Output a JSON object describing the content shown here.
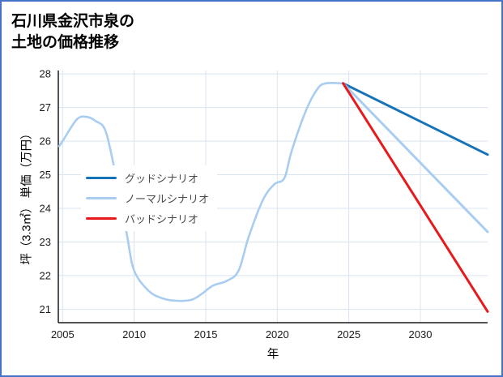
{
  "frame": {
    "border_color": "#4472c4",
    "background": "#ffffff"
  },
  "chart_data": {
    "type": "line",
    "title_line1": "石川県金沢市泉の",
    "title_line2": "土地の価格推移",
    "xlabel": "年",
    "ylabel": "坪（3.3㎡） 単価（万円）",
    "xlim": [
      2004.7,
      2034.7
    ],
    "ylim": [
      20.6,
      28.1
    ],
    "xticks": [
      2005,
      2010,
      2015,
      2020,
      2025,
      2030
    ],
    "yticks": [
      21,
      22,
      23,
      24,
      25,
      26,
      27,
      28
    ],
    "grid": true,
    "grid_color": "#d9e4f1",
    "axis_color": "#1a1a1a",
    "tick_label_color": "#1a1a1a",
    "legend_position": "inside-left",
    "legend": [
      {
        "label": "グッドシナリオ",
        "color": "#1573b9"
      },
      {
        "label": "ノーマルシナリオ",
        "color": "#a9cdf0"
      },
      {
        "label": "バッドシナリオ",
        "color": "#e8191c"
      }
    ],
    "series": [
      {
        "name": "price-history",
        "color": "#a9cdf0",
        "width": 2.6,
        "smooth": true,
        "x": [
          2004.75,
          2005,
          2006,
          2006.7,
          2007.3,
          2008,
          2008.7,
          2009.5,
          2010,
          2011,
          2012,
          2013,
          2014,
          2014.7,
          2015.5,
          2016.5,
          2017.3,
          2018,
          2019,
          2019.8,
          2020.5,
          2021,
          2022,
          2022.8,
          2023.4,
          2024.6
        ],
        "y": [
          25.85,
          26.0,
          26.65,
          26.72,
          26.6,
          26.3,
          25.0,
          23.2,
          22.15,
          21.55,
          21.32,
          21.25,
          21.28,
          21.45,
          21.7,
          21.85,
          22.15,
          23.15,
          24.25,
          24.72,
          24.9,
          25.7,
          26.9,
          27.55,
          27.72,
          27.72
        ],
        "unit": "万円/坪"
      },
      {
        "name": "グッドシナリオ",
        "color": "#1573b9",
        "width": 3,
        "smooth": false,
        "x": [
          2024.6,
          2034.7
        ],
        "y": [
          27.72,
          25.6
        ],
        "unit": "万円/坪"
      },
      {
        "name": "ノーマルシナリオ",
        "color": "#a9cdf0",
        "width": 3,
        "smooth": false,
        "x": [
          2024.6,
          2034.7
        ],
        "y": [
          27.72,
          23.3
        ],
        "unit": "万円/坪"
      },
      {
        "name": "バッドシナリオ",
        "color": "#e8191c",
        "width": 3,
        "smooth": false,
        "x": [
          2024.6,
          2034.7
        ],
        "y": [
          27.72,
          20.93
        ],
        "unit": "万円/坪"
      }
    ]
  }
}
